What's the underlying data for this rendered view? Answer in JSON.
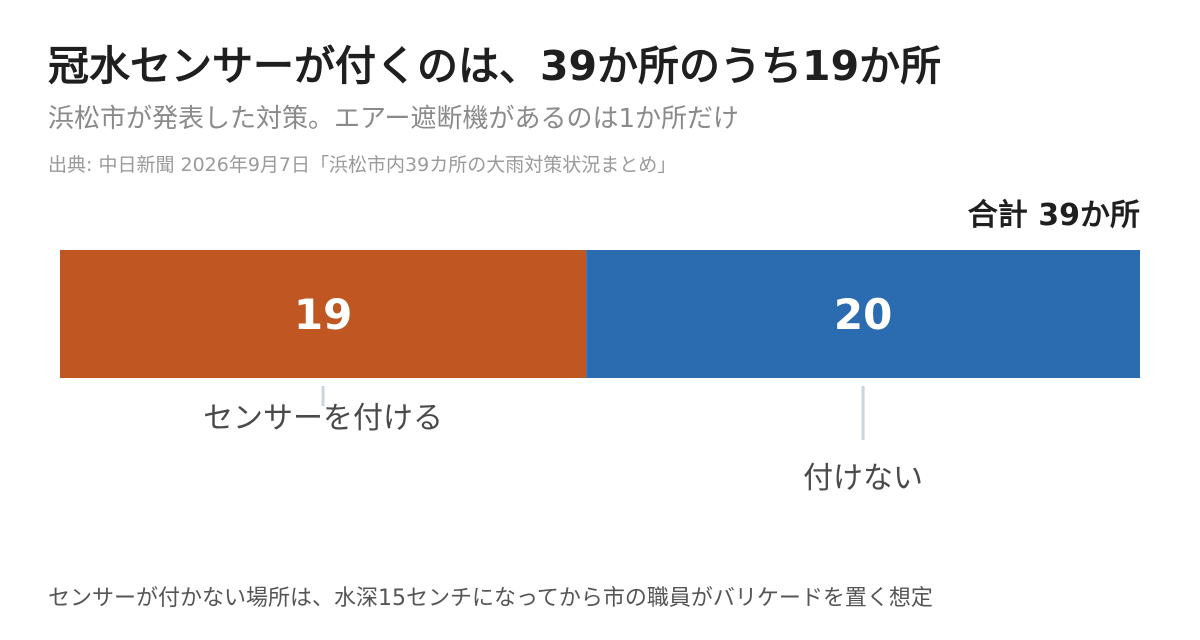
{
  "title": "冠水センサーが付くのは、39か所のうち19か所",
  "subtitle": "浜松市が発表した対策。エアー遮断機があるのは1か所だけ",
  "source": "出典: 中日新聞 2026年9月7日「浜松市内39カ所の大雨対策状況まとめ」",
  "total_label": "合計 39か所",
  "footnote": "センサーが付かない場所は、水深15センチになってから市の職員がバリケードを置く想定",
  "chart_data": {
    "type": "bar",
    "orientation": "horizontal-stacked",
    "total": 39,
    "categories": [
      "センサーを付ける",
      "付けない"
    ],
    "values": [
      19,
      20
    ],
    "colors": [
      "#c05621",
      "#2b6cb0"
    ],
    "value_label_color": "#ffffff",
    "leader_color": "#cbd5e0",
    "category_label_color": "#4a4a4a"
  }
}
